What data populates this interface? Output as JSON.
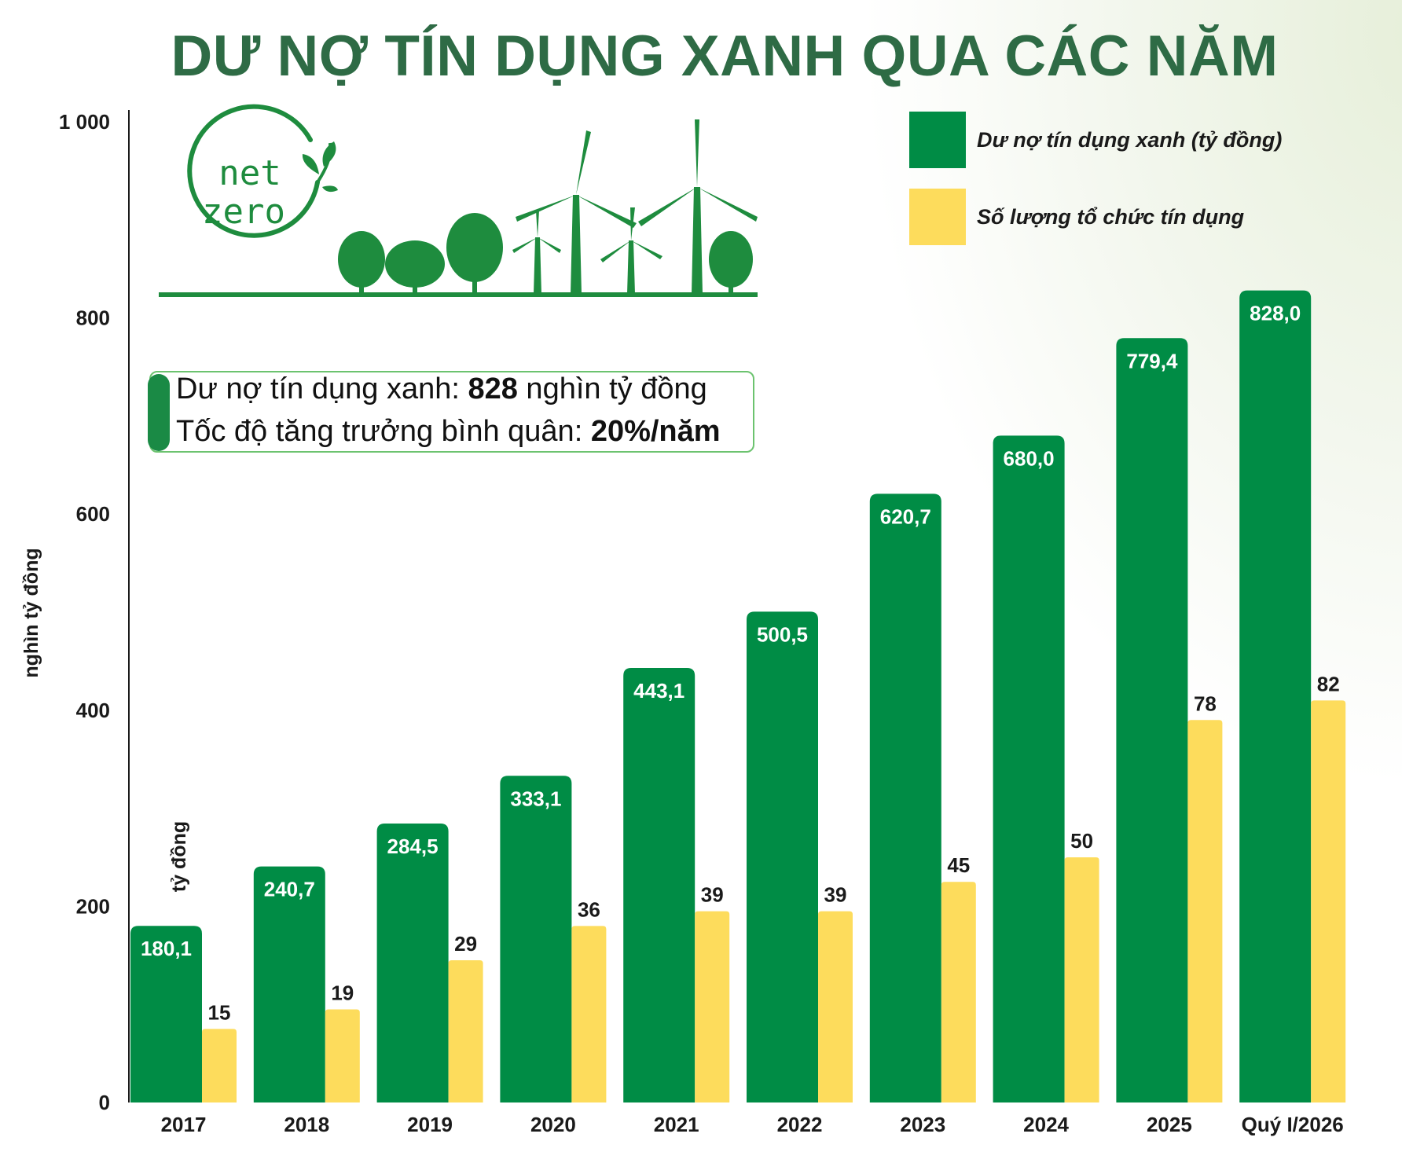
{
  "chart_data": {
    "type": "bar",
    "title": "DƯ NỢ TÍN DỤNG XANH QUA CÁC NĂM",
    "ylabel": "nghìn tỷ đồng",
    "secondary_axis_label": "tỷ đồng",
    "ylim": [
      0,
      1000
    ],
    "yticks": [
      "0",
      "200",
      "400",
      "600",
      "800",
      "1 000"
    ],
    "yticks_values": [
      0,
      200,
      400,
      600,
      800,
      1000
    ],
    "grid": false,
    "legend_position": "top-right",
    "categories": [
      "2017",
      "2018",
      "2019",
      "2020",
      "2021",
      "2022",
      "2023",
      "2024",
      "2025",
      "Quý I/2026"
    ],
    "series": [
      {
        "name": "Dư nợ tín dụng xanh (tỷ đồng)",
        "color": "#008c45",
        "values": [
          180.1,
          240.7,
          284.5,
          333.1,
          443.1,
          500.5,
          620.7,
          680.0,
          779.4,
          828.0
        ],
        "labels": [
          "180,1",
          "240,7",
          "284,5",
          "333,1",
          "443,1",
          "500,5",
          "620,7",
          "680,0",
          "779,4",
          "828,0"
        ]
      },
      {
        "name": "Số lượng tổ chức tín dụng",
        "color": "#fddc5c",
        "values": [
          15,
          19,
          29,
          36,
          39,
          39,
          45,
          50,
          78,
          82
        ],
        "labels": [
          "15",
          "19",
          "29",
          "36",
          "39",
          "39",
          "45",
          "50",
          "78",
          "82"
        ]
      }
    ]
  },
  "info_box": {
    "line1_prefix": "Dư nợ tín dụng xanh: ",
    "line1_bold": "828",
    "line1_suffix": " nghìn tỷ đồng",
    "line2_prefix": "Tốc độ tăng trưởng bình quân: ",
    "line2_bold": "20%/năm"
  },
  "illustration": {
    "logo_text_line1": "net",
    "logo_text_line2": "zero",
    "icons": [
      "net-zero-logo",
      "tree-icons",
      "wind-turbine-icons"
    ]
  },
  "colors": {
    "title": "#2e6b45",
    "green": "#008c45",
    "yellow": "#fddc5c",
    "illustration": "#1e8c3e"
  }
}
